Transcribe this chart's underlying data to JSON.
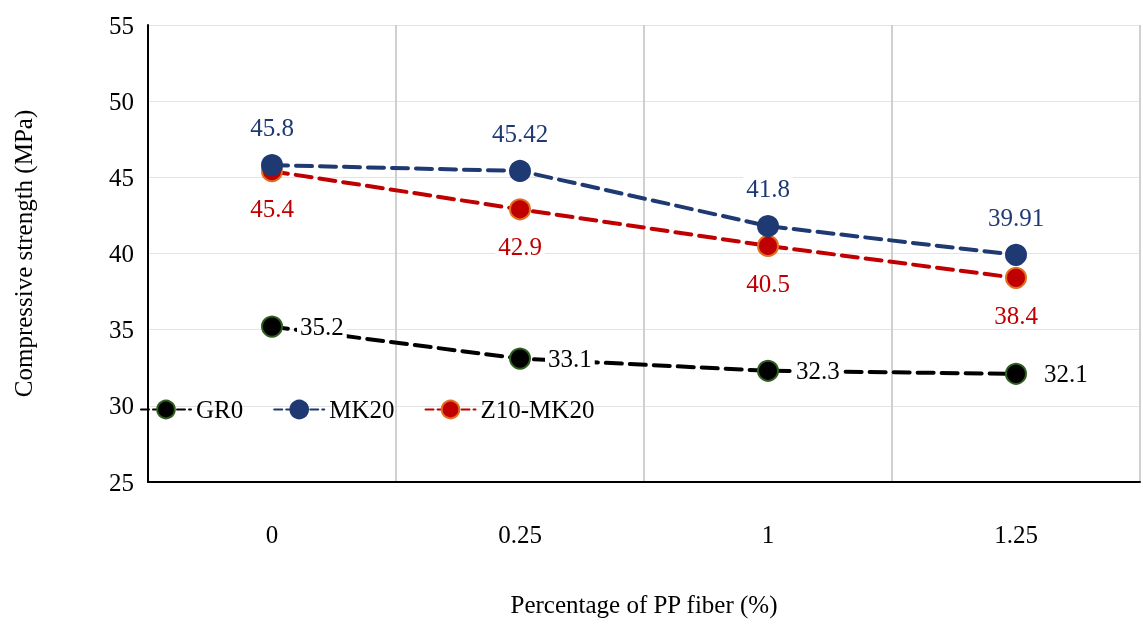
{
  "chart_data": {
    "type": "line",
    "xlabel": "Percentage of PP fiber (%)",
    "ylabel": "Compressive strength (MPa)",
    "categories": [
      "0",
      "0.25",
      "1",
      "1.25"
    ],
    "series": [
      {
        "name": "GR0",
        "color": "#000000",
        "values": [
          35.2,
          33.1,
          32.3,
          32.1
        ]
      },
      {
        "name": "MK20",
        "color": "#1f3a73",
        "values": [
          45.8,
          45.42,
          41.8,
          39.91
        ]
      },
      {
        "name": "Z10-MK20",
        "color": "#c00000",
        "values": [
          45.4,
          42.9,
          40.5,
          38.4
        ]
      }
    ],
    "ylim": [
      25,
      55
    ],
    "yticks": [
      25,
      30,
      35,
      40,
      45,
      50,
      55
    ],
    "grid": true,
    "legend": "bottom left",
    "marker": "circle",
    "line_style": "dashed",
    "data_labels": true
  }
}
